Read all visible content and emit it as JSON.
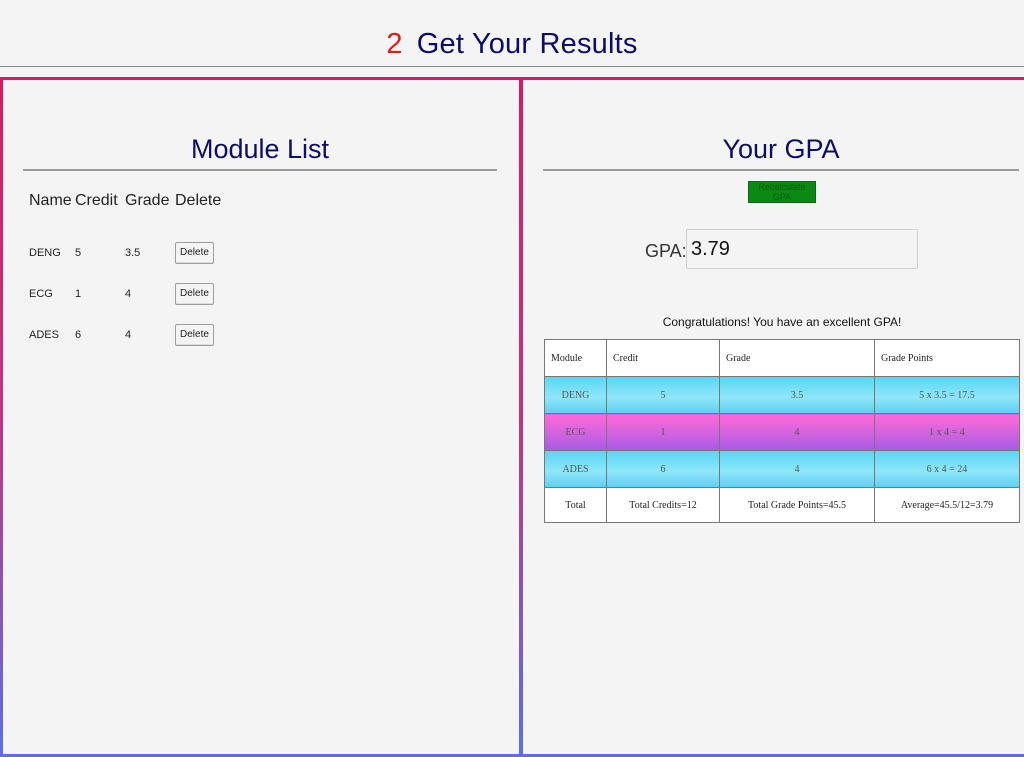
{
  "header": {
    "step": "2",
    "title": "Get Your Results"
  },
  "module_list": {
    "title": "Module List",
    "columns": [
      "Name",
      "Credit",
      "Grade",
      "Delete"
    ],
    "rows": [
      {
        "name": "DENG",
        "credit": "5",
        "grade": "3.5",
        "delete_label": "Delete"
      },
      {
        "name": "ECG",
        "credit": "1",
        "grade": "4",
        "delete_label": "Delete"
      },
      {
        "name": "ADES",
        "credit": "6",
        "grade": "4",
        "delete_label": "Delete"
      }
    ]
  },
  "gpa": {
    "title": "Your GPA",
    "recalc_label": "Recalculate GPA",
    "label": "GPA:",
    "value": "3.79",
    "message": "Congratulations! You have an excellent GPA!",
    "table": {
      "headers": [
        "Module",
        "Credit",
        "Grade",
        "Grade Points"
      ],
      "rows": [
        {
          "module": "DENG",
          "credit": "5",
          "grade": "3.5",
          "points": "5 x 3.5 = 17.5"
        },
        {
          "module": "ECG",
          "credit": "1",
          "grade": "4",
          "points": "1 x 4 = 4"
        },
        {
          "module": "ADES",
          "credit": "6",
          "grade": "4",
          "points": "6 x 4 = 24"
        }
      ],
      "total": {
        "label": "Total",
        "credits": "Total Credits=12",
        "grade_points": "Total Grade Points=45.5",
        "average": "Average=45.5/12=3.79"
      }
    }
  },
  "colors": {
    "title": "#0d0d66",
    "step": "#e41a1a",
    "recalc_button": "#0b8a13",
    "row_blue": "#5ad7f5",
    "row_pink": "#ff6ad5"
  }
}
